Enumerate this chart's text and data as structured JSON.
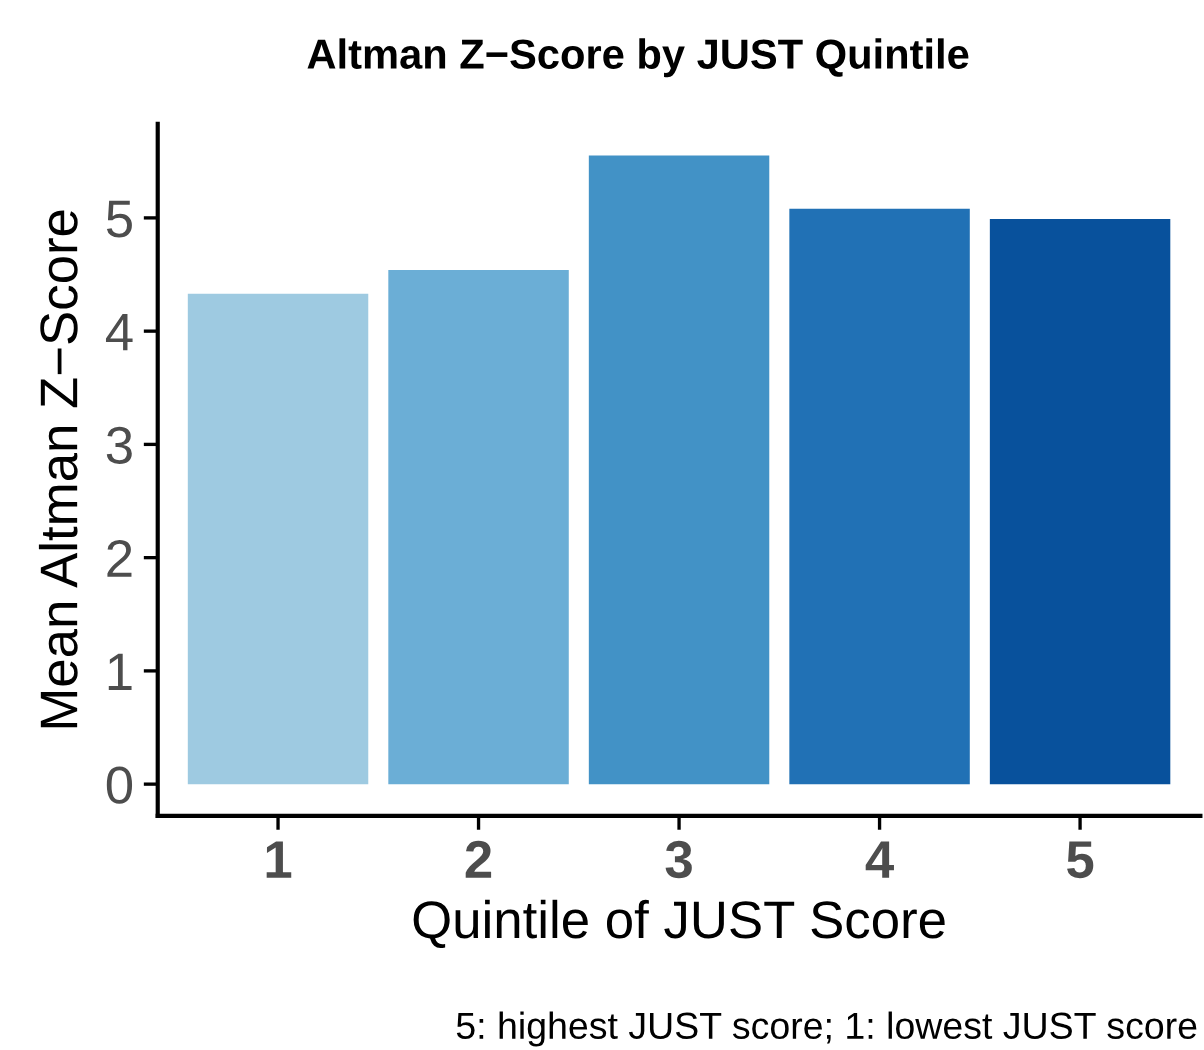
{
  "chart_data": {
    "type": "bar",
    "title": "Altman Z−Score by JUST Quintile",
    "xlabel": "Quintile of JUST Score",
    "ylabel": "Mean Altman Z−Score",
    "categories": [
      "1",
      "2",
      "3",
      "4",
      "5"
    ],
    "values": [
      4.33,
      4.54,
      5.55,
      5.08,
      4.99
    ],
    "colors": [
      "#9ecae1",
      "#6baed6",
      "#4292c6",
      "#2171b5",
      "#08519c"
    ],
    "ylim": [
      -0.28,
      5.83
    ],
    "yticks": [
      0,
      1,
      2,
      3,
      4,
      5
    ],
    "grid": false,
    "legend": false,
    "annotations": [
      "5: highest JUST score; 1: lowest JUST score"
    ]
  }
}
